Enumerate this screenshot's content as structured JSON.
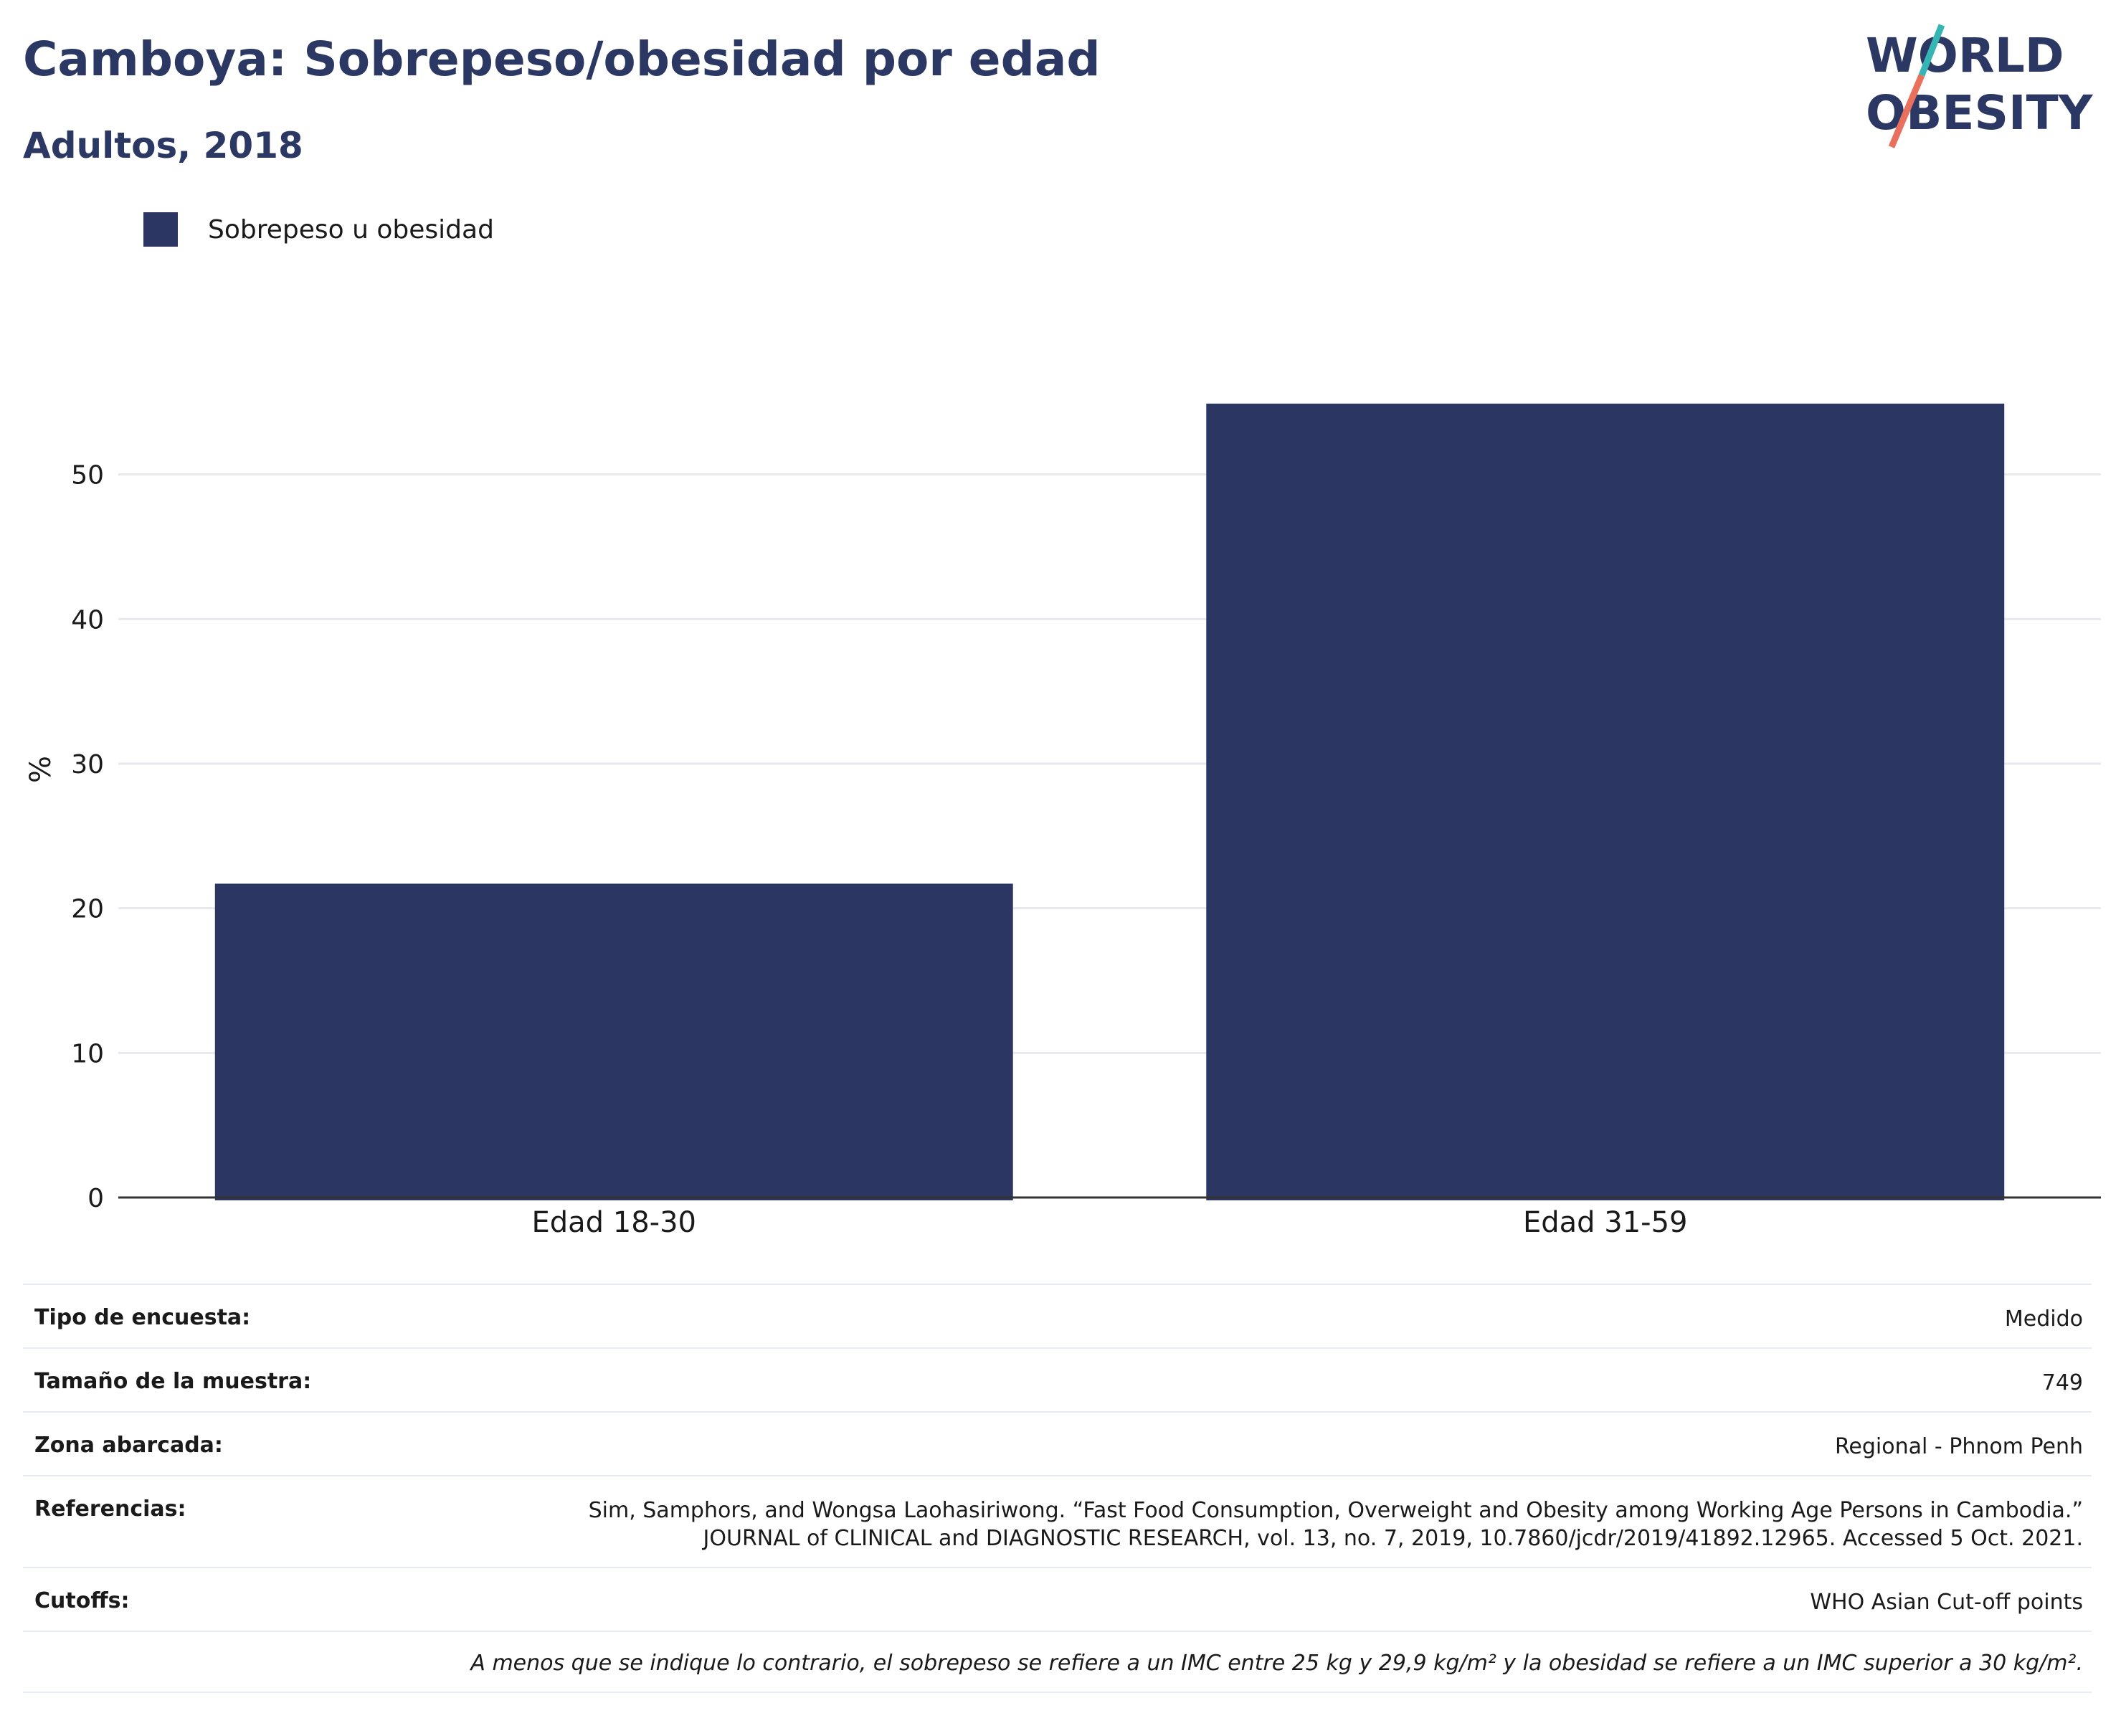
{
  "header": {
    "title": "Camboya: Sobrepeso/obesidad por edad",
    "subtitle": "Adultos, 2018"
  },
  "logo": {
    "line1": "WORLD",
    "line2": "OBESITY",
    "accent_colors": [
      "#35b6b4",
      "#e8705d"
    ]
  },
  "legend": {
    "label": "Sobrepeso u obesidad",
    "color": "#2b3663"
  },
  "chart_data": {
    "type": "bar",
    "categories": [
      "Edad 18-30",
      "Edad 31-59"
    ],
    "series": [
      {
        "name": "Sobrepeso u obesidad",
        "values": [
          21.7,
          54.9
        ],
        "color": "#2b3663"
      }
    ],
    "ylabel": "%",
    "xlabel": "",
    "ylim": [
      0,
      60
    ],
    "yticks": [
      0,
      10,
      20,
      30,
      40,
      50
    ],
    "grid": true,
    "legend_position": "top-left"
  },
  "info": {
    "rows": [
      {
        "key": "Tipo de encuesta:",
        "value": "Medido"
      },
      {
        "key": "Tamaño de la muestra:",
        "value": "749"
      },
      {
        "key": "Zona abarcada:",
        "value": "Regional - Phnom Penh"
      },
      {
        "key": "Referencias:",
        "value": "Sim, Samphors, and Wongsa Laohasiriwong. “Fast Food Consumption, Overweight and Obesity among Working Age Persons in Cambodia.” JOURNAL of CLINICAL and DIAGNOSTIC RESEARCH, vol. 13, no. 7, 2019, 10.7860/jcdr/2019/41892.12965. Accessed 5 Oct. 2021."
      },
      {
        "key": "Cutoffs:",
        "value": "WHO Asian Cut-off points"
      }
    ],
    "footnote": "A menos que se indique lo contrario, el sobrepeso se refiere a un IMC entre 25 kg y 29,9 kg/m² y la obesidad se refiere a un IMC superior a 30 kg/m²."
  }
}
